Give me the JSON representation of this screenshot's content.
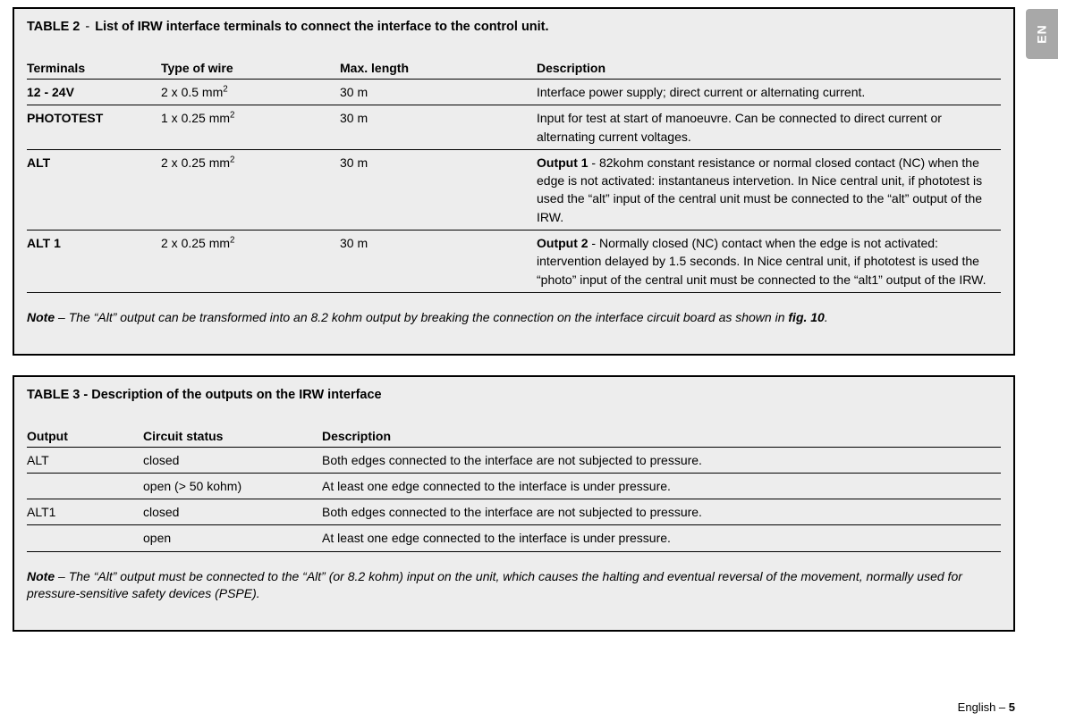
{
  "lang_tab": "EN",
  "footer": {
    "text_prefix": "English – ",
    "page_num": "5"
  },
  "table2": {
    "title_prefix": "TABLE 2",
    "title_sep": " - ",
    "title_rest": "List of IRW interface terminals to connect the interface to the control unit.",
    "headers": {
      "terminals": "Terminals",
      "wire": "Type of wire",
      "len": "Max. length",
      "desc": "Description"
    },
    "rows": [
      {
        "terminals": "12 - 24V",
        "wire_pre": "2 x 0.5 mm",
        "wire_sup": "2",
        "len": "30 m",
        "desc": "Interface power supply; direct current or alternating current."
      },
      {
        "terminals": "PHOTOTEST",
        "wire_pre": "1 x 0.25 mm",
        "wire_sup": "2",
        "len": "30 m",
        "desc": "Input for test at start of manoeuvre. Can be connected to direct current or alternating current voltages."
      },
      {
        "terminals": "ALT",
        "wire_pre": "2 x 0.25 mm",
        "wire_sup": "2",
        "len": "30 m",
        "desc_bold": "Output 1",
        "desc_after": " - 82kohm constant resistance or normal closed contact (NC) when the edge is not activated: instantaneus intervetion. In Nice central unit, if phototest is used the “alt” input of the central unit must be connected to the “alt” output of the IRW."
      },
      {
        "terminals": "ALT 1",
        "wire_pre": "2 x 0.25 mm",
        "wire_sup": "2",
        "len": "30 m",
        "desc_bold": "Output 2",
        "desc_after": " - Normally closed (NC) contact when the edge is not activated: intervention delayed by 1.5 seconds. In Nice central unit, if phototest is used the “photo” input of the central unit must be connected to the “alt1” output of the IRW."
      }
    ],
    "note_label": "Note",
    "note_text_1": " – The “Alt” output can be transformed into an 8.2 kohm output by breaking the connection on the interface circuit board as shown in ",
    "note_fig": "fig. 10",
    "note_text_2": "."
  },
  "table3": {
    "title": "TABLE 3 - Description of the outputs on the IRW interface",
    "headers": {
      "output": "Output",
      "status": "Circuit status",
      "desc": "Description"
    },
    "rows": [
      {
        "output": "ALT",
        "status": "closed",
        "desc": "Both edges connected to the interface are not subjected to pressure."
      },
      {
        "output": "",
        "status": "open (> 50 kohm)",
        "desc": "At least one edge connected to the interface is under pressure."
      },
      {
        "output": "ALT1",
        "status": "closed",
        "desc": "Both edges connected to the interface are not subjected to pressure."
      },
      {
        "output": "",
        "status": "open",
        "desc": "At least one edge connected to the interface is under pressure."
      }
    ],
    "note_label": "Note",
    "note_text": " – The “Alt” output must be connected to the “Alt” (or 8.2 kohm) input on the unit, which causes the halting and  eventual reversal of the movement, normally used for pressure-sensitive safety devices (PSPE)."
  }
}
